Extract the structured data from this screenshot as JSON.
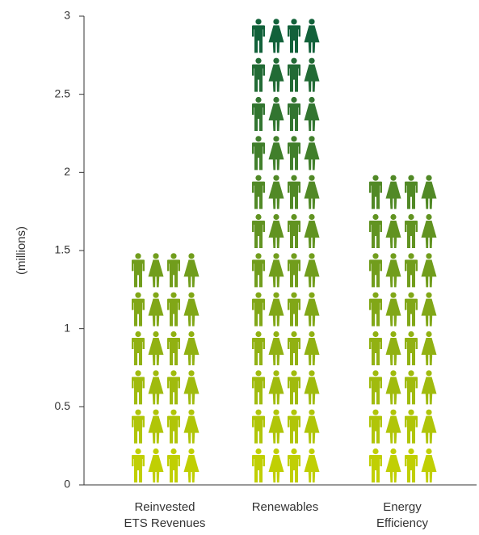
{
  "chart_data": {
    "type": "bar",
    "style": "pictograph",
    "categories": [
      [
        "Reinvested",
        "ETS Revenues"
      ],
      [
        "Renewables"
      ],
      [
        "Energy",
        "Efficiency"
      ]
    ],
    "values": [
      1.5,
      3.0,
      2.0
    ],
    "ylabel": "(millions)",
    "ylim": [
      0,
      3
    ],
    "yticks": [
      "0",
      "0.5",
      "1",
      "1.5",
      "2",
      "2.5",
      "3"
    ],
    "grid": false,
    "icons_per_row": 4,
    "icon_unit": 0.25,
    "icon_names": [
      "man-icon",
      "woman-icon"
    ],
    "colors": {
      "bottom": "#c8d400",
      "top": "#0a5c3c",
      "axis": "#333333"
    }
  }
}
